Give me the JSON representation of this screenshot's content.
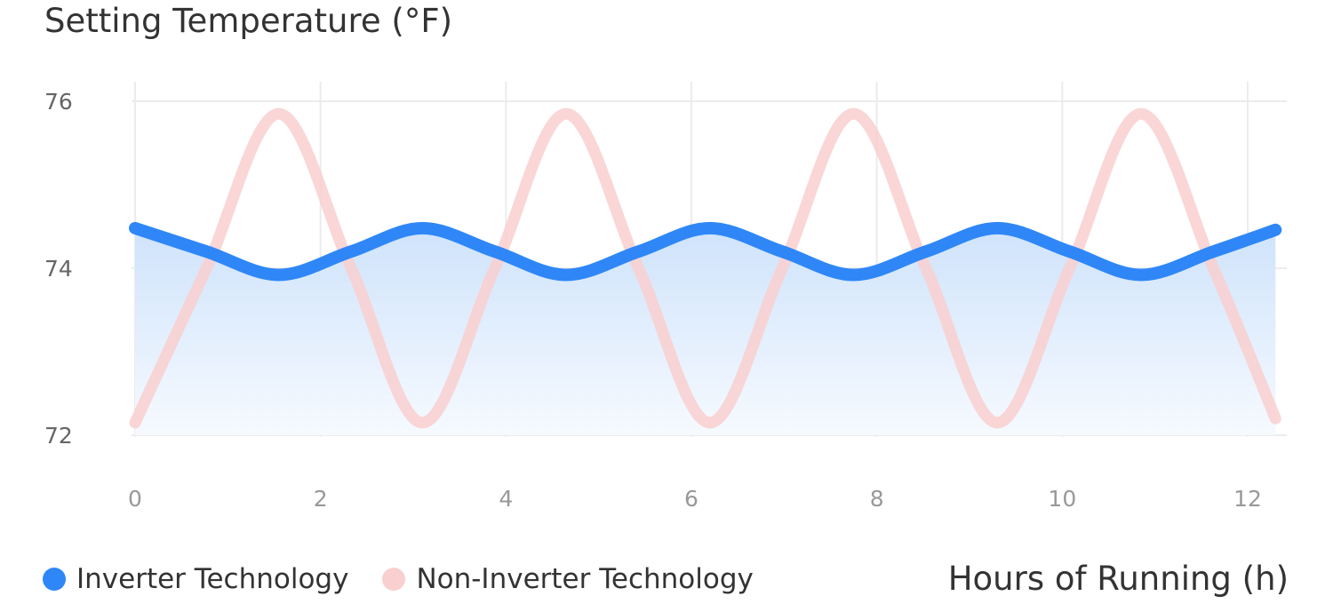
{
  "title": "Setting Temperature (°F)",
  "colors": {
    "inverter": "#2f87f7",
    "non_inverter": "#f9cfcf",
    "grid": "#ececec",
    "area_top": "#cfe3fb",
    "area_bottom": "#f6faff"
  },
  "legend": {
    "items": [
      {
        "label": "Inverter Technology",
        "color": "#2f87f7"
      },
      {
        "label": "Non-Inverter Technology",
        "color": "#f9cfcf"
      }
    ]
  },
  "chart_data": {
    "type": "line",
    "title": "Setting Temperature (°F)",
    "xlabel": "Hours of Running (h)",
    "ylabel": "",
    "xlim": [
      0,
      12.3
    ],
    "ylim": [
      72,
      76
    ],
    "x_ticks": [
      "0",
      "2",
      "4",
      "6",
      "8",
      "10",
      "12"
    ],
    "y_ticks": [
      "72",
      "74",
      "76"
    ],
    "grid": true,
    "legend_position": "bottom-left",
    "series": [
      {
        "name": "Inverter Technology",
        "color": "#2f87f7",
        "area_fill": true,
        "x": [
          0,
          0.77,
          1.55,
          2.33,
          3.1,
          3.88,
          4.65,
          5.43,
          6.2,
          6.98,
          7.75,
          8.53,
          9.3,
          10.08,
          10.85,
          11.63,
          12.3
        ],
        "y": [
          74.48,
          74.2,
          73.92,
          74.2,
          74.48,
          74.2,
          73.92,
          74.2,
          74.48,
          74.2,
          73.92,
          74.2,
          74.48,
          74.2,
          73.92,
          74.2,
          74.46
        ]
      },
      {
        "name": "Non-Inverter Technology",
        "color": "#f9cfcf",
        "area_fill": false,
        "x": [
          0,
          0.77,
          1.55,
          2.33,
          3.1,
          3.88,
          4.65,
          5.43,
          6.2,
          6.98,
          7.75,
          8.53,
          9.3,
          10.08,
          10.85,
          11.63,
          12.3
        ],
        "y": [
          72.15,
          74.0,
          75.85,
          74.0,
          72.15,
          74.0,
          75.85,
          74.0,
          72.15,
          74.0,
          75.85,
          74.0,
          72.15,
          74.0,
          75.85,
          74.0,
          72.2
        ]
      }
    ]
  }
}
